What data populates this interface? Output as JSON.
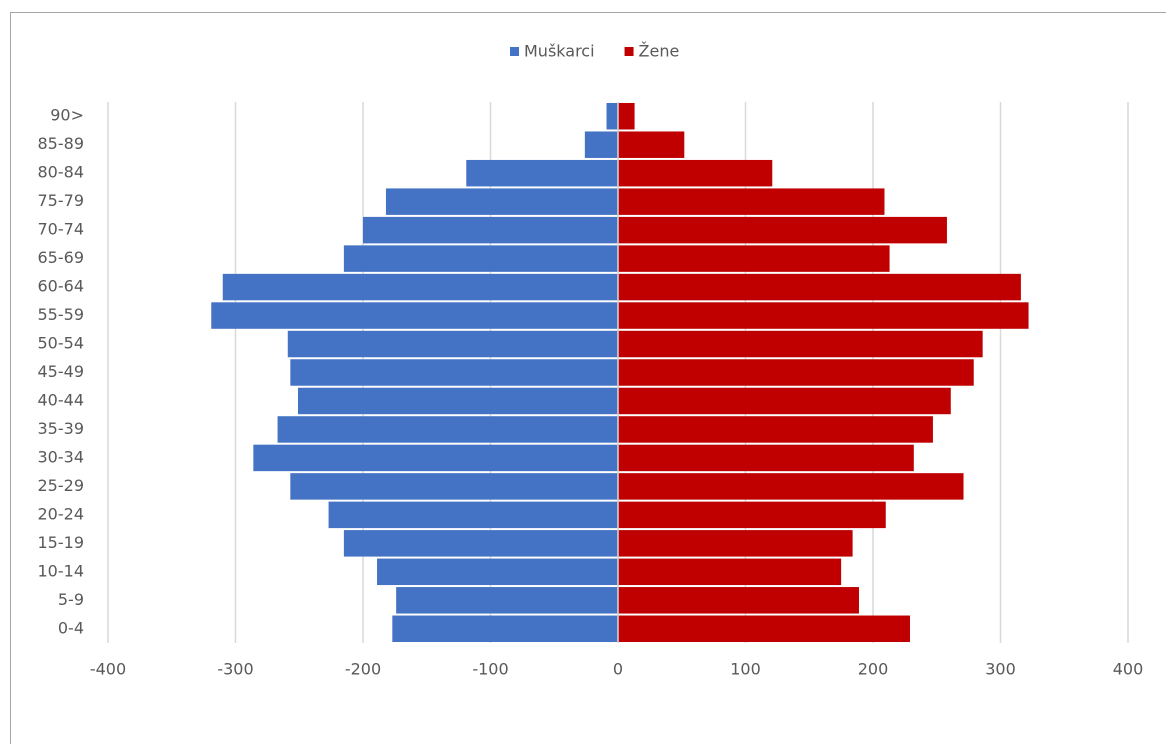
{
  "chart_data": {
    "type": "bar",
    "orientation": "horizontal",
    "categories": [
      "0-4",
      "5-9",
      "10-14",
      "15-19",
      "20-24",
      "25-29",
      "30-34",
      "35-39",
      "40-44",
      "45-49",
      "50-54",
      "55-59",
      "60-64",
      "65-69",
      "70-74",
      "75-79",
      "80-84",
      "85-89",
      "90>"
    ],
    "series": [
      {
        "name": "Muškarci",
        "color": "#4472c4",
        "values": [
          -177,
          -174,
          -189,
          -215,
          -227,
          -257,
          -286,
          -267,
          -251,
          -257,
          -259,
          -319,
          -310,
          -215,
          -200,
          -182,
          -119,
          -26,
          -9
        ]
      },
      {
        "name": "Žene",
        "color": "#c00000",
        "values": [
          229,
          189,
          175,
          184,
          210,
          271,
          232,
          247,
          261,
          279,
          286,
          322,
          316,
          213,
          258,
          209,
          121,
          52,
          13
        ]
      }
    ],
    "xlim": [
      -400,
      400
    ],
    "xticks": [
      -400,
      -300,
      -200,
      -100,
      0,
      100,
      200,
      300,
      400
    ],
    "grid": true,
    "legend": "top"
  }
}
